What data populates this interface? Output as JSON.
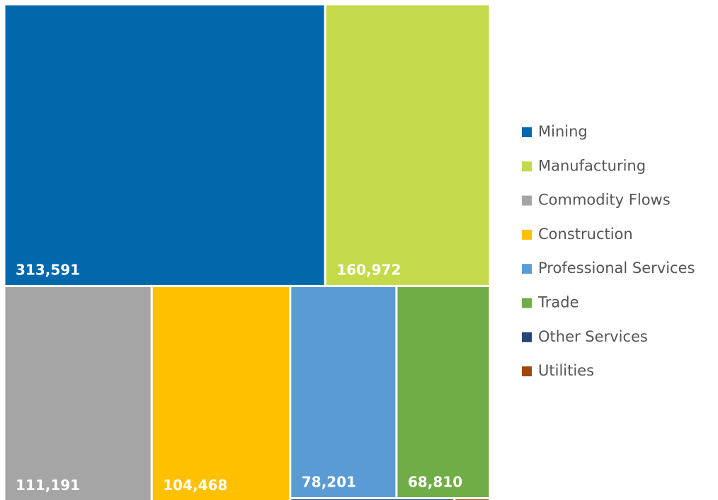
{
  "chart_data": {
    "type": "treemap",
    "categories": [
      "Mining",
      "Manufacturing",
      "Commodity Flows",
      "Construction",
      "Professional Services",
      "Trade",
      "Other Services",
      "Utilities"
    ],
    "values": [
      313591,
      160972,
      111191,
      104468,
      78201,
      68810,
      3000,
      650
    ],
    "value_labels": [
      "313,591",
      "160,972",
      "111,191",
      "104,468",
      "78,201",
      "68,810",
      null,
      null
    ],
    "colors": [
      "#0068ab",
      "#c5d94a",
      "#a5a5a5",
      "#ffc000",
      "#5b9bd5",
      "#70ad47",
      "#264478",
      "#9e480e"
    ],
    "legend": "right"
  }
}
